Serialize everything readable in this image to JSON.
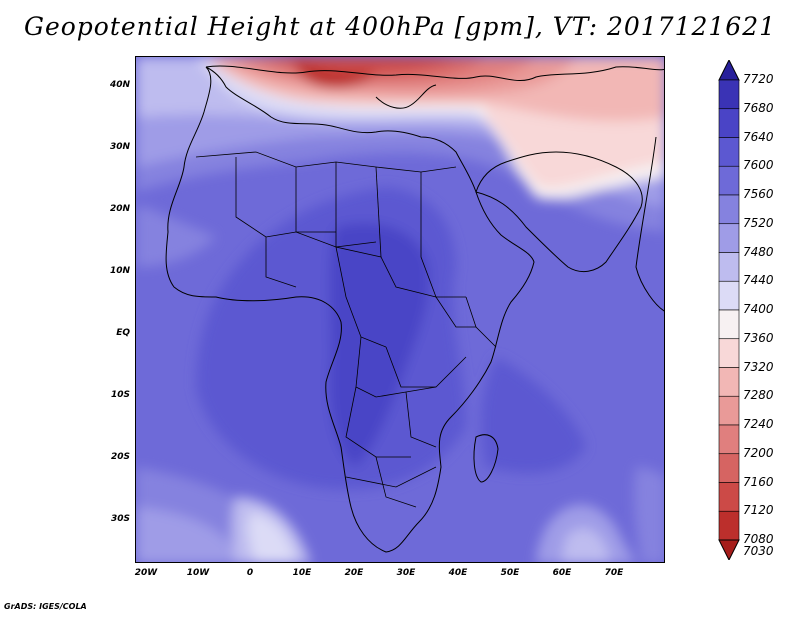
{
  "title": "Geopotential Height at 400hPa [gpm], VT: 2017121621",
  "footer": "GrADS: IGES/COLA",
  "map": {
    "region": "Africa",
    "lat_labels": [
      "40N",
      "30N",
      "20N",
      "10N",
      "EQ",
      "10S",
      "20S",
      "30S"
    ],
    "lon_labels": [
      "20W",
      "10W",
      "0",
      "10E",
      "20E",
      "30E",
      "40E",
      "50E",
      "60E",
      "70E"
    ]
  },
  "colorbar": {
    "labels": [
      "7720",
      "7680",
      "7640",
      "7600",
      "7560",
      "7520",
      "7480",
      "7440",
      "7400",
      "7360",
      "7320",
      "7280",
      "7240",
      "7200",
      "7160",
      "7120",
      "7080",
      "7030"
    ],
    "colors": [
      "#28209b",
      "#3a33b5",
      "#4a44c6",
      "#5c58d1",
      "#6e6ad8",
      "#8582df",
      "#9f9ce7",
      "#bebcef",
      "#dcdbf6",
      "#f7f1f2",
      "#f8d8d8",
      "#f2b7b5",
      "#e99a98",
      "#e07f7e",
      "#d66462",
      "#cc4a47",
      "#bc2f2c",
      "#a61d1b"
    ]
  }
}
